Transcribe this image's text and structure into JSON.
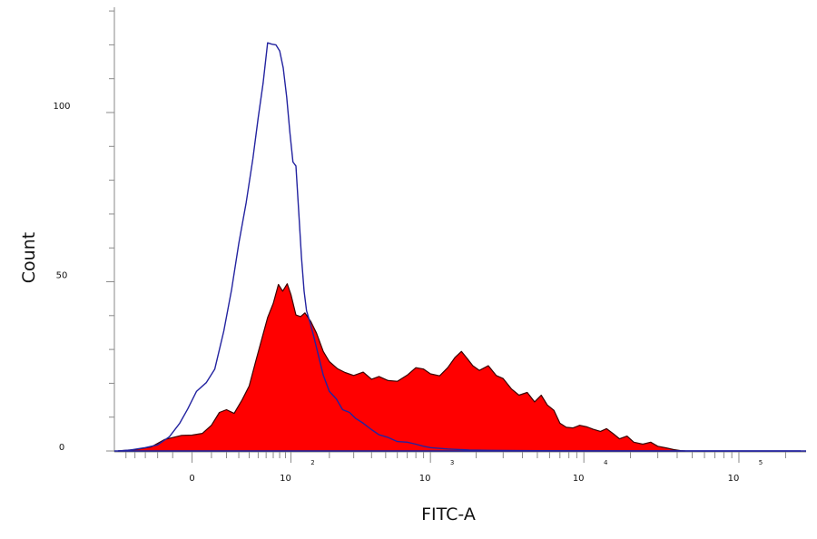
{
  "chart_data": {
    "type": "area",
    "xlabel": "FITC-A",
    "ylabel": "Count",
    "x_scale": "biexponential",
    "x_tick_labels": [
      {
        "value": 0,
        "base": "0",
        "exp": ""
      },
      {
        "value": 100,
        "base": "10",
        "exp": "2"
      },
      {
        "value": 1000,
        "base": "10",
        "exp": "3"
      },
      {
        "value": 10000,
        "base": "10",
        "exp": "4"
      },
      {
        "value": 100000,
        "base": "10",
        "exp": "5"
      }
    ],
    "y_ticks": [
      {
        "value": 0,
        "label": "0"
      },
      {
        "value": 50,
        "label": "50"
      },
      {
        "value": 100,
        "label": "100"
      }
    ],
    "ylim": [
      0,
      130
    ],
    "xlim": [
      -60,
      250000
    ],
    "grid": false,
    "series": [
      {
        "fill": "#ff0000",
        "stroke": "#3a0000",
        "points": [
          [
            -60,
            0
          ],
          [
            -40,
            0.4
          ],
          [
            -25,
            1.2
          ],
          [
            -15,
            3.4
          ],
          [
            -5,
            4.6
          ],
          [
            0,
            4.7
          ],
          [
            5,
            5.2
          ],
          [
            10,
            7.6
          ],
          [
            15,
            11.4
          ],
          [
            20,
            12.2
          ],
          [
            26,
            11.1
          ],
          [
            33,
            15.1
          ],
          [
            40,
            19.2
          ],
          [
            47,
            26.4
          ],
          [
            55,
            33.6
          ],
          [
            62,
            39.4
          ],
          [
            70,
            43.6
          ],
          [
            78,
            49.2
          ],
          [
            85,
            47.2
          ],
          [
            93,
            49.4
          ],
          [
            100,
            46.2
          ],
          [
            110,
            40.2
          ],
          [
            120,
            39.7
          ],
          [
            130,
            40.8
          ],
          [
            145,
            38.2
          ],
          [
            160,
            34.8
          ],
          [
            180,
            29.4
          ],
          [
            200,
            26.4
          ],
          [
            230,
            24.3
          ],
          [
            260,
            23.2
          ],
          [
            300,
            22.3
          ],
          [
            350,
            23.3
          ],
          [
            400,
            21.2
          ],
          [
            450,
            22.0
          ],
          [
            520,
            20.8
          ],
          [
            600,
            20.6
          ],
          [
            700,
            22.4
          ],
          [
            800,
            24.6
          ],
          [
            900,
            24.2
          ],
          [
            1000,
            22.8
          ],
          [
            1150,
            22.2
          ],
          [
            1300,
            24.6
          ],
          [
            1450,
            27.6
          ],
          [
            1600,
            29.4
          ],
          [
            1750,
            27.3
          ],
          [
            1900,
            25.2
          ],
          [
            2100,
            23.8
          ],
          [
            2400,
            25.2
          ],
          [
            2700,
            22.3
          ],
          [
            3000,
            21.4
          ],
          [
            3400,
            18.3
          ],
          [
            3800,
            16.5
          ],
          [
            4300,
            17.3
          ],
          [
            4800,
            14.5
          ],
          [
            5300,
            16.5
          ],
          [
            5800,
            13.6
          ],
          [
            6400,
            12.0
          ],
          [
            7000,
            8.2
          ],
          [
            7700,
            7.0
          ],
          [
            8500,
            6.8
          ],
          [
            9400,
            7.6
          ],
          [
            10500,
            7.1
          ],
          [
            11500,
            6.4
          ],
          [
            12800,
            5.8
          ],
          [
            14000,
            6.6
          ],
          [
            15500,
            5.1
          ],
          [
            17000,
            3.6
          ],
          [
            19000,
            4.4
          ],
          [
            21000,
            2.6
          ],
          [
            24000,
            2.0
          ],
          [
            27000,
            2.6
          ],
          [
            30000,
            1.4
          ],
          [
            34000,
            0.9
          ],
          [
            38000,
            0.4
          ],
          [
            42000,
            0.1
          ],
          [
            45000,
            0
          ]
        ]
      },
      {
        "fill": "none",
        "stroke": "#2323a0",
        "points": [
          [
            -60,
            0
          ],
          [
            -45,
            0.3
          ],
          [
            -30,
            1.0
          ],
          [
            -20,
            1.8
          ],
          [
            -12,
            4.2
          ],
          [
            -6,
            8.2
          ],
          [
            -2,
            12.4
          ],
          [
            2,
            17.6
          ],
          [
            7,
            20.2
          ],
          [
            12,
            24.2
          ],
          [
            18,
            35.4
          ],
          [
            24,
            47.8
          ],
          [
            30,
            61.4
          ],
          [
            37,
            73.4
          ],
          [
            44,
            86.4
          ],
          [
            50,
            98.4
          ],
          [
            56,
            108.6
          ],
          [
            62,
            120.6
          ],
          [
            68,
            120.2
          ],
          [
            74,
            120.0
          ],
          [
            80,
            118.2
          ],
          [
            86,
            113.2
          ],
          [
            92,
            104.6
          ],
          [
            98,
            94.2
          ],
          [
            104,
            85.4
          ],
          [
            110,
            84.2
          ],
          [
            116,
            70.6
          ],
          [
            122,
            57.2
          ],
          [
            128,
            47.2
          ],
          [
            134,
            41.4
          ],
          [
            142,
            38.2
          ],
          [
            152,
            34.0
          ],
          [
            165,
            28.4
          ],
          [
            180,
            22.4
          ],
          [
            200,
            17.6
          ],
          [
            225,
            15.4
          ],
          [
            250,
            12.2
          ],
          [
            280,
            11.4
          ],
          [
            310,
            9.6
          ],
          [
            350,
            8.2
          ],
          [
            400,
            6.3
          ],
          [
            450,
            4.8
          ],
          [
            520,
            4.0
          ],
          [
            600,
            2.8
          ],
          [
            700,
            2.6
          ],
          [
            800,
            2.0
          ],
          [
            900,
            1.4
          ],
          [
            1000,
            1.0
          ],
          [
            1300,
            0.6
          ],
          [
            1800,
            0.3
          ],
          [
            2500,
            0.2
          ],
          [
            4000,
            0.1
          ],
          [
            8000,
            0.05
          ],
          [
            20000,
            0.02
          ],
          [
            60000,
            0
          ],
          [
            250000,
            0
          ]
        ]
      }
    ]
  }
}
